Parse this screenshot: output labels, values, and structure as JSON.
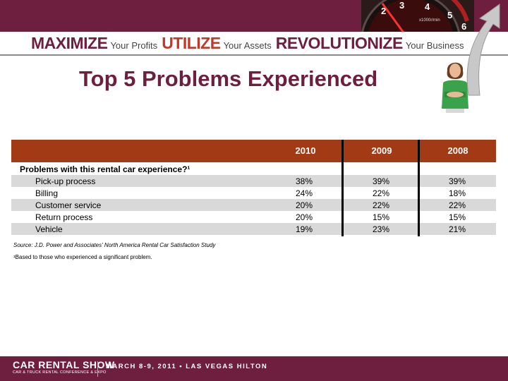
{
  "tagline": {
    "word1": "MAXIMIZE",
    "phrase1": "Your Profits",
    "word2": "UTILIZE",
    "phrase2": "Your Assets",
    "word3": "REVOLUTIONIZE",
    "phrase3": "Your Business"
  },
  "title": "Top 5 Problems Experienced",
  "table": {
    "years": [
      "2010",
      "2009",
      "2008"
    ],
    "question": "Problems with this rental car experience?¹",
    "rows": [
      {
        "label": "Pick-up process",
        "values": [
          "38%",
          "39%",
          "39%"
        ]
      },
      {
        "label": "Billing",
        "values": [
          "24%",
          "22%",
          "18%"
        ]
      },
      {
        "label": "Customer service",
        "values": [
          "20%",
          "22%",
          "22%"
        ]
      },
      {
        "label": "Return process",
        "values": [
          "20%",
          "15%",
          "15%"
        ]
      },
      {
        "label": "Vehicle",
        "values": [
          "19%",
          "23%",
          "21%"
        ]
      }
    ]
  },
  "source": "Source: J.D. Power and Associates' North America Rental Car Satisfaction Study",
  "footnote": "¹Based to those who experienced a significant problem.",
  "footer": {
    "brand": "CAR RENTAL SHOW",
    "brand_sub": "CAR & TRUCK RENTAL CONFERENCE & EXPO",
    "event": "MARCH 8-9, 2011 • LAS VEGAS HILTON"
  },
  "gauge": {
    "numbers": [
      "2",
      "3",
      "4",
      "5",
      "6"
    ],
    "unit": "x1000r/min"
  },
  "colors": {
    "maroon": "#6e1f3f",
    "header": "#a23a16",
    "shade": "#d9d9d9",
    "accent_red": "#c0392b"
  }
}
